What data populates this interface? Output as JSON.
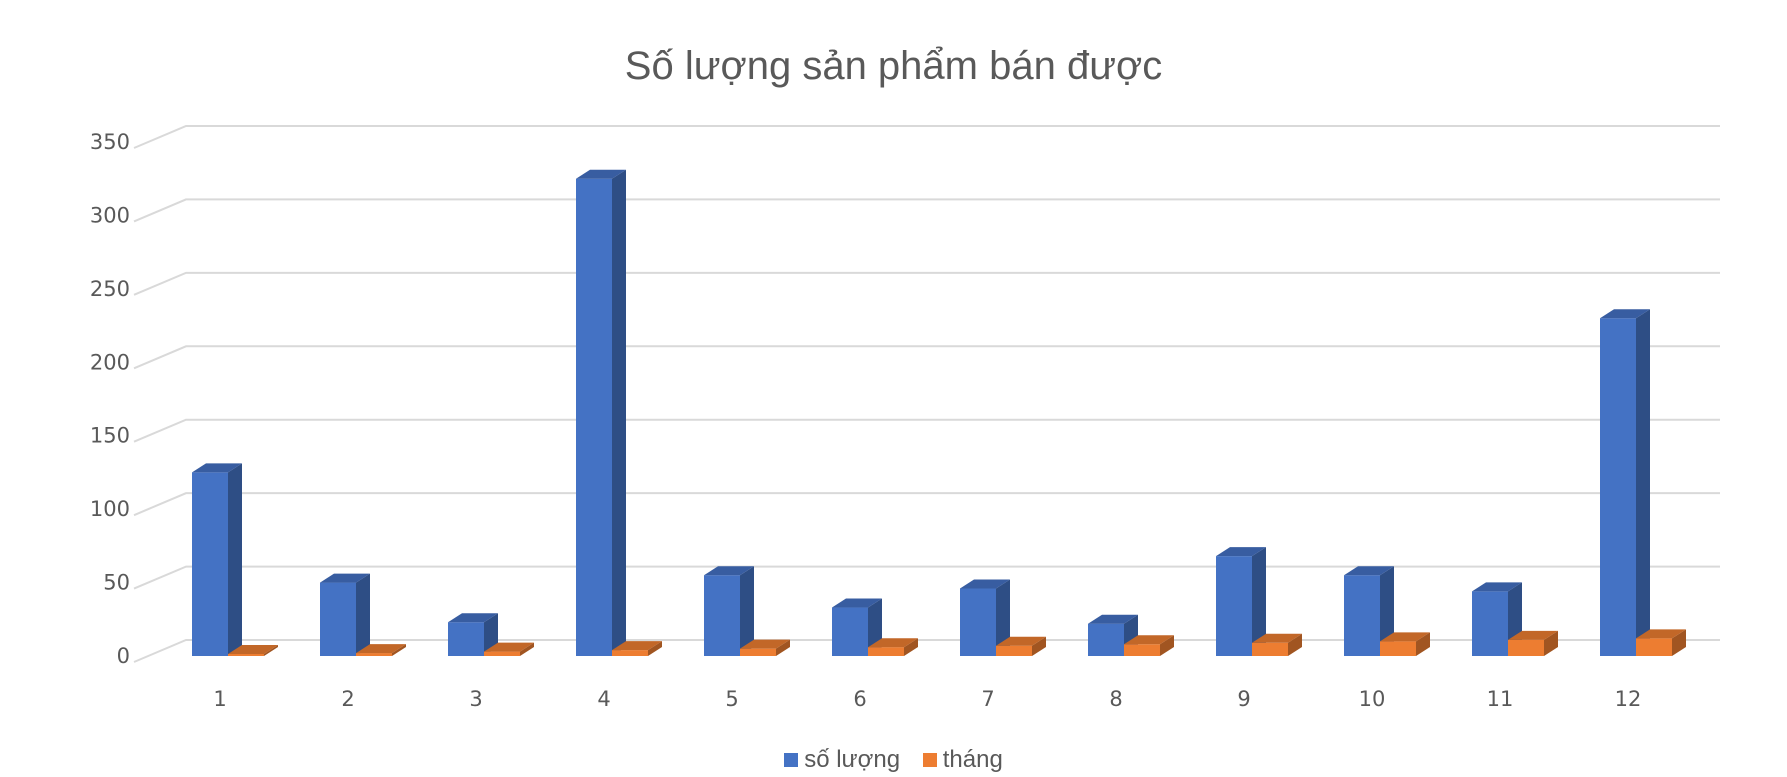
{
  "chart_data": {
    "type": "bar",
    "title": "Số lượng sản phẩm bán được",
    "categories": [
      "1",
      "2",
      "3",
      "4",
      "5",
      "6",
      "7",
      "8",
      "9",
      "10",
      "11",
      "12"
    ],
    "series": [
      {
        "name": "số lượng",
        "values": [
          125,
          50,
          23,
          325,
          55,
          33,
          46,
          22,
          68,
          55,
          44,
          230
        ],
        "color": "#4472C4"
      },
      {
        "name": "tháng",
        "values": [
          1,
          2,
          3,
          4,
          5,
          6,
          7,
          8,
          9,
          10,
          11,
          12
        ],
        "color": "#ED7D31"
      }
    ],
    "yticks": [
      "0",
      "50",
      "100",
      "150",
      "200",
      "250",
      "300",
      "350"
    ],
    "ylim": [
      0,
      350
    ],
    "grid": true,
    "legend_position": "bottom",
    "style": "3d-clustered-column"
  }
}
